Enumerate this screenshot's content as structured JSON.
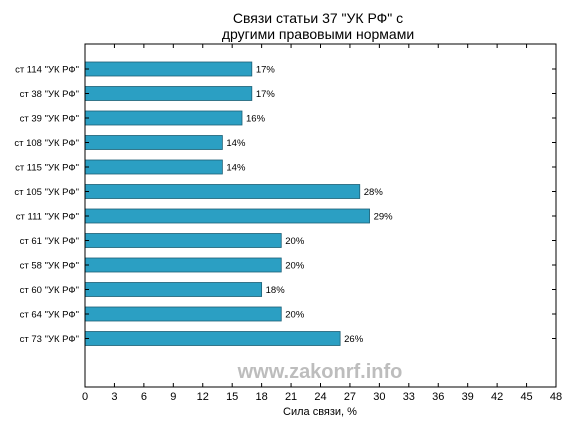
{
  "chart_data": {
    "type": "bar",
    "orientation": "horizontal",
    "title_lines": [
      "Связи статьи 37 \"УК РФ\" с",
      "другими правовыми нормами"
    ],
    "xlabel": "Сила связи, %",
    "ylabel": "",
    "xlim": [
      0,
      48
    ],
    "xticks": [
      0,
      3,
      6,
      9,
      12,
      15,
      18,
      21,
      24,
      27,
      30,
      33,
      36,
      39,
      42,
      45,
      48
    ],
    "categories": [
      "ст 114 \"УК РФ\"",
      "ст 38 \"УК РФ\"",
      "ст 39 \"УК РФ\"",
      "ст 108 \"УК РФ\"",
      "ст 115 \"УК РФ\"",
      "ст 105 \"УК РФ\"",
      "ст 111 \"УК РФ\"",
      "ст 61 \"УК РФ\"",
      "ст 58 \"УК РФ\"",
      "ст 60 \"УК РФ\"",
      "ст 64 \"УК РФ\"",
      "ст 73 \"УК РФ\""
    ],
    "values": [
      17,
      17,
      16,
      14,
      14,
      28,
      29,
      20,
      20,
      18,
      20,
      26
    ],
    "value_labels": [
      "17%",
      "17%",
      "16%",
      "14%",
      "14%",
      "28%",
      "29%",
      "20%",
      "20%",
      "18%",
      "20%",
      "26%"
    ],
    "grid": false,
    "bar_color": "#2b9fc3",
    "bar_edge_color": "#1d5f75"
  },
  "watermark": "www.zakonrf.info"
}
